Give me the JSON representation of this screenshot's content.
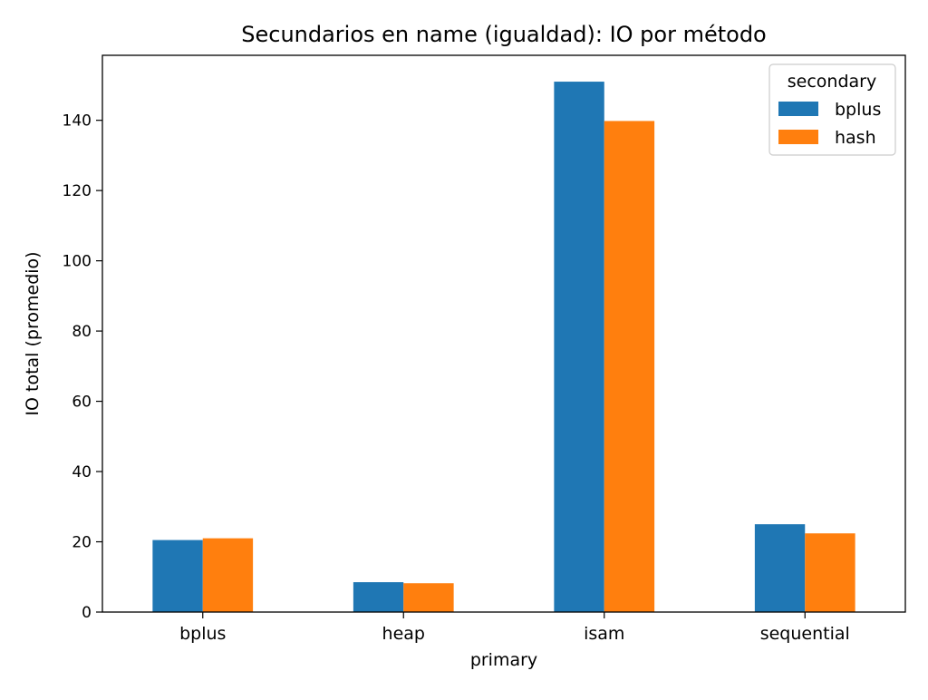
{
  "chart_data": {
    "type": "bar",
    "title": "Secundarios en name (igualdad): IO por método",
    "xlabel": "primary",
    "ylabel": "IO total (promedio)",
    "categories": [
      "bplus",
      "heap",
      "isam",
      "sequential"
    ],
    "series": [
      {
        "name": "bplus",
        "values": [
          20.5,
          8.5,
          151.0,
          25.0
        ],
        "color": "#1f77b4"
      },
      {
        "name": "hash",
        "values": [
          21.0,
          8.2,
          139.8,
          22.4
        ],
        "color": "#ff7f0e"
      }
    ],
    "ylim": [
      0,
      158.5
    ],
    "yticks": [
      0,
      20,
      40,
      60,
      80,
      100,
      120,
      140
    ],
    "legend": {
      "title": "secondary",
      "position": "top-right"
    },
    "grid": false
  }
}
